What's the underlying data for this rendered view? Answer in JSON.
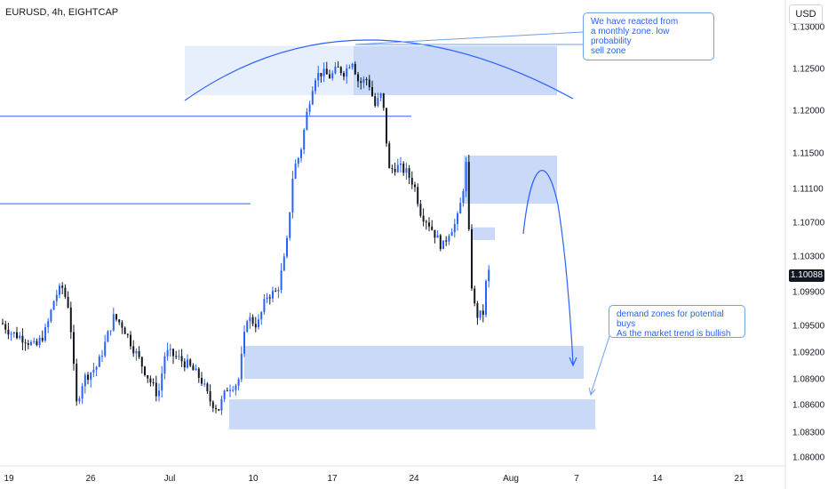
{
  "header": {
    "symbol": "EURUSD, 4h, EIGHTCAP",
    "currency_button": "USD"
  },
  "chart_data": {
    "type": "candlestick",
    "instrument": "EURUSD",
    "timeframe": "4h",
    "y_ticks": [
      "1.13000",
      "1.12500",
      "1.12000",
      "1.11500",
      "1.11100",
      "1.10700",
      "1.10300",
      "1.09900",
      "1.09500",
      "1.09200",
      "1.08900",
      "1.08600",
      "1.08300",
      "1.08000"
    ],
    "x_ticks": [
      "19",
      "26",
      "Jul",
      "10",
      "17",
      "24",
      "Aug",
      "7",
      "14",
      "21"
    ],
    "last_price": "1.10088",
    "ylim": [
      1.0795,
      1.1312
    ],
    "horizontal_lines": [
      1.1193,
      1.1092
    ],
    "zones": [
      {
        "kind": "sell",
        "y_top": 1.1277,
        "y_bottom": 1.1218
      },
      {
        "kind": "supply",
        "y_top": 1.1147,
        "y_bottom": 1.1092
      },
      {
        "kind": "small",
        "y_top": 1.1064,
        "y_bottom": 1.1049
      },
      {
        "kind": "demand",
        "y_top": 1.0927,
        "y_bottom": 1.089
      },
      {
        "kind": "demand",
        "y_top": 1.0866,
        "y_bottom": 1.0833
      }
    ],
    "annotations": [
      {
        "text": "We have reacted from\na monthly zone. low probability\nsell zone"
      },
      {
        "text": "demand zones for potential buys\nAs the market trend is bullish"
      }
    ],
    "colors": {
      "up": "#2962ff",
      "down": "#131722",
      "zone": "#bcd0f5",
      "line": "#2962ff"
    }
  }
}
